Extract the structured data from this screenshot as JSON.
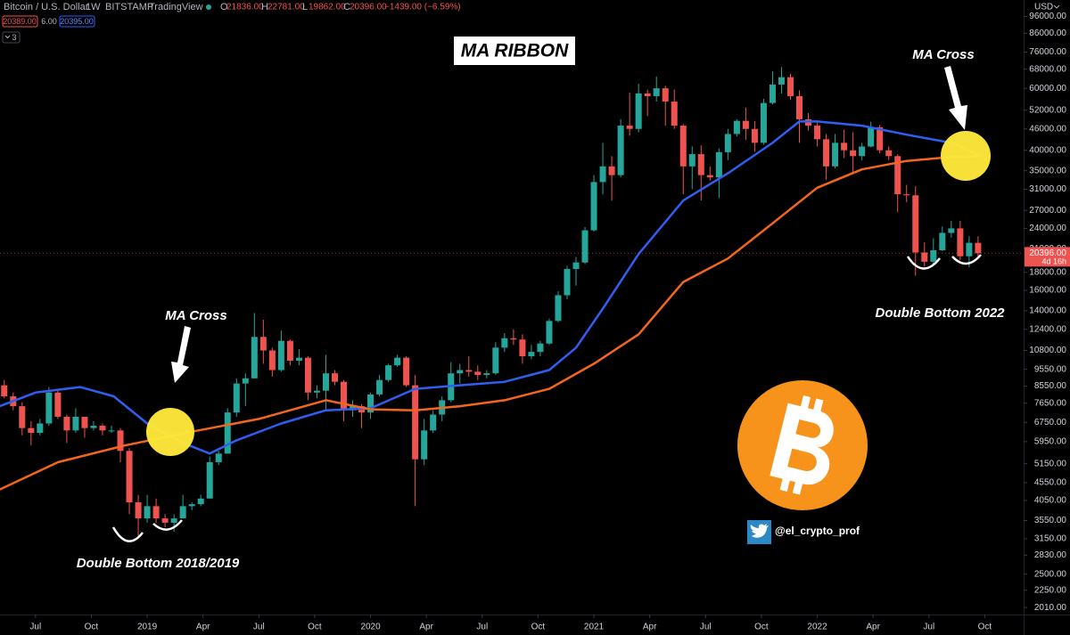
{
  "header": {
    "symbol": "Bitcoin / U.S. Dollar",
    "interval": "1W",
    "exchange": "BITSTAMP",
    "source": "TradingView",
    "ohlc": [
      {
        "key": "O",
        "value": "21836.00"
      },
      {
        "key": "H",
        "value": "22781.00"
      },
      {
        "key": "L",
        "value": "19862.00"
      },
      {
        "key": "C",
        "value": "20396.00"
      }
    ],
    "change": "−1439.00 (−6.59%)",
    "bid": "20389.00",
    "spread": "6.00",
    "ask": "20395.00",
    "indicators": "3"
  },
  "chart_data": {
    "type": "candlestick",
    "title": "MA RIBBON",
    "currency": "USD",
    "log_scale": true,
    "grid": false,
    "up_color": "#26a69a",
    "down_color": "#ef5350",
    "x": [
      2018.36,
      2018.4,
      2018.44,
      2018.48,
      2018.52,
      2018.56,
      2018.6,
      2018.64,
      2018.68,
      2018.72,
      2018.76,
      2018.8,
      2018.84,
      2018.88,
      2018.92,
      2018.96,
      2019.0,
      2019.04,
      2019.08,
      2019.12,
      2019.16,
      2019.2,
      2019.24,
      2019.28,
      2019.32,
      2019.36,
      2019.4,
      2019.44,
      2019.48,
      2019.52,
      2019.56,
      2019.6,
      2019.64,
      2019.68,
      2019.72,
      2019.76,
      2019.8,
      2019.84,
      2019.88,
      2019.92,
      2019.96,
      2020.0,
      2020.04,
      2020.08,
      2020.12,
      2020.16,
      2020.2,
      2020.24,
      2020.28,
      2020.32,
      2020.36,
      2020.4,
      2020.44,
      2020.48,
      2020.52,
      2020.56,
      2020.6,
      2020.64,
      2020.68,
      2020.72,
      2020.76,
      2020.8,
      2020.84,
      2020.88,
      2020.92,
      2020.96,
      2021.0,
      2021.04,
      2021.08,
      2021.12,
      2021.16,
      2021.2,
      2021.24,
      2021.28,
      2021.32,
      2021.36,
      2021.4,
      2021.44,
      2021.48,
      2021.52,
      2021.56,
      2021.6,
      2021.64,
      2021.68,
      2021.72,
      2021.76,
      2021.8,
      2021.84,
      2021.88,
      2021.92,
      2021.96,
      2022.0,
      2022.04,
      2022.08,
      2022.12,
      2022.16,
      2022.2,
      2022.24,
      2022.28,
      2022.32,
      2022.36,
      2022.4,
      2022.44,
      2022.48,
      2022.52,
      2022.56,
      2022.6,
      2022.64,
      2022.68,
      2022.72
    ],
    "open": [
      8600,
      8000,
      7500,
      6500,
      6300,
      6700,
      8200,
      7000,
      6400,
      7000,
      6500,
      6600,
      6400,
      6400,
      5600,
      4000,
      3600,
      3900,
      3600,
      3500,
      3600,
      3900,
      3950,
      4100,
      5200,
      5500,
      7200,
      8700,
      9000,
      11800,
      10800,
      9500,
      11500,
      10100,
      10300,
      8200,
      8300,
      9300,
      8800,
      7300,
      7500,
      7200,
      8100,
      8900,
      9800,
      10300,
      8600,
      5300,
      6400,
      7100,
      7800,
      9300,
      9500,
      9400,
      9200,
      9300,
      11000,
      11700,
      11600,
      10400,
      10700,
      11300,
      13100,
      15500,
      18400,
      19200,
      23700,
      32500,
      36000,
      34000,
      47000,
      46000,
      58000,
      57000,
      60000,
      55000,
      47000,
      36000,
      39000,
      34000,
      33500,
      39500,
      44500,
      48500,
      46000,
      42000,
      54500,
      61500,
      64500,
      57000,
      49000,
      47000,
      43000,
      36000,
      42000,
      40000,
      38500,
      41000,
      46500,
      40000,
      38500,
      30000,
      29800,
      20500,
      19300,
      20800,
      23300,
      24000,
      20000,
      21836
    ],
    "high": [
      8900,
      8200,
      7700,
      6800,
      6900,
      8500,
      8300,
      7100,
      7400,
      7000,
      6800,
      6700,
      6600,
      6500,
      5700,
      4200,
      4200,
      4100,
      3700,
      3700,
      4200,
      4000,
      4200,
      5400,
      5600,
      7400,
      9000,
      9300,
      13800,
      13200,
      11000,
      12300,
      11600,
      10900,
      10400,
      8600,
      10500,
      9500,
      8900,
      7800,
      7600,
      8200,
      9200,
      9900,
      10500,
      10400,
      9200,
      6900,
      7300,
      8000,
      10000,
      9900,
      10400,
      9800,
      9500,
      11400,
      12100,
      12400,
      12000,
      11200,
      11500,
      13300,
      15900,
      18800,
      19900,
      24200,
      34000,
      42000,
      38500,
      49000,
      58300,
      61800,
      59500,
      64800,
      61000,
      59500,
      47500,
      41000,
      41300,
      36000,
      40500,
      46000,
      49000,
      52900,
      48400,
      56000,
      67000,
      69000,
      66000,
      59200,
      51000,
      48500,
      44500,
      44500,
      45800,
      45000,
      42000,
      48200,
      47200,
      41000,
      39000,
      31900,
      31600,
      21900,
      22500,
      24300,
      25200,
      25200,
      22800,
      22781
    ],
    "low": [
      7900,
      7300,
      6200,
      5800,
      6200,
      6600,
      6900,
      5900,
      6300,
      6100,
      6400,
      6200,
      6300,
      5200,
      3700,
      3200,
      3500,
      3500,
      3400,
      3300,
      3600,
      3800,
      3900,
      4100,
      5100,
      5500,
      7000,
      7500,
      9000,
      9900,
      9100,
      9400,
      9800,
      9800,
      7800,
      7900,
      7300,
      8600,
      6800,
      7000,
      6500,
      6900,
      8000,
      8800,
      9700,
      8500,
      3900,
      5100,
      6300,
      6800,
      7700,
      8700,
      9100,
      8900,
      9000,
      9200,
      10700,
      11200,
      9900,
      10200,
      10400,
      11200,
      13000,
      15100,
      16500,
      19000,
      23500,
      30000,
      28800,
      33500,
      44000,
      45000,
      50000,
      55000,
      47000,
      46000,
      30000,
      31000,
      28800,
      32800,
      29300,
      37500,
      43800,
      42800,
      39600,
      41500,
      54000,
      58000,
      55600,
      42000,
      45500,
      41000,
      33000,
      35500,
      38000,
      34300,
      37500,
      40800,
      39200,
      37500,
      26700,
      28500,
      17600,
      18700,
      18900,
      20700,
      22600,
      19500,
      18600,
      19862
    ],
    "close": [
      8000,
      7500,
      6500,
      6300,
      6700,
      8200,
      7000,
      6400,
      7000,
      6500,
      6600,
      6400,
      6400,
      5600,
      4000,
      3600,
      3900,
      3600,
      3500,
      3600,
      3900,
      3950,
      4100,
      5200,
      5500,
      7200,
      8700,
      9000,
      11800,
      10800,
      9500,
      11500,
      10100,
      10300,
      8200,
      8300,
      9300,
      8800,
      7300,
      7500,
      7200,
      8100,
      8900,
      9800,
      10300,
      8600,
      5300,
      6400,
      7100,
      7800,
      9300,
      9500,
      9400,
      9200,
      9300,
      11000,
      11700,
      11600,
      10400,
      10700,
      11300,
      13100,
      15500,
      18400,
      19200,
      23700,
      32500,
      36000,
      34000,
      47000,
      46000,
      58000,
      57000,
      60000,
      55000,
      47000,
      36000,
      39000,
      34000,
      33500,
      39500,
      44500,
      48500,
      46000,
      42000,
      54500,
      61500,
      64500,
      57000,
      49000,
      47000,
      43000,
      36000,
      42000,
      40000,
      38500,
      41000,
      46500,
      40000,
      38500,
      30000,
      29800,
      20500,
      19300,
      20800,
      23300,
      24000,
      20000,
      21836,
      20396
    ],
    "series": [
      {
        "color": "#2f5ff0",
        "x": [
          2018.34,
          2018.5,
          2018.7,
          2018.85,
          2019.0,
          2019.16,
          2019.28,
          2019.4,
          2019.6,
          2019.8,
          2020.0,
          2020.2,
          2020.4,
          2020.6,
          2020.8,
          2020.92,
          2021.04,
          2021.2,
          2021.4,
          2021.6,
          2021.8,
          2021.92,
          2022.0,
          2022.2,
          2022.4,
          2022.6,
          2022.73
        ],
        "values": [
          7500,
          8200,
          8500,
          8000,
          6700,
          5900,
          5500,
          6000,
          6700,
          7300,
          7400,
          8400,
          8600,
          8800,
          9500,
          11000,
          14200,
          20300,
          28800,
          34400,
          42000,
          48300,
          48300,
          47000,
          44300,
          42000,
          38500
        ]
      },
      {
        "color": "#f4661b",
        "x": [
          2018.34,
          2018.6,
          2018.9,
          2019.2,
          2019.5,
          2019.8,
          2020.0,
          2020.2,
          2020.4,
          2020.6,
          2020.8,
          2021.0,
          2021.2,
          2021.4,
          2021.6,
          2021.8,
          2022.0,
          2022.2,
          2022.4,
          2022.6,
          2022.73
        ],
        "values": [
          4350,
          5200,
          5800,
          6350,
          6900,
          7800,
          7350,
          7300,
          7500,
          7800,
          8400,
          9900,
          12000,
          16900,
          19700,
          24800,
          31300,
          35300,
          37300,
          38300,
          38500
        ]
      }
    ],
    "last_price": {
      "value": 20396,
      "label": "20396.00"
    },
    "countdown": "4d 16h",
    "annotations": [
      "MA Cross",
      "MA Cross",
      "Double Bottom 2018/2019",
      "Double Bottom 2022"
    ],
    "handle": "@el_crypto_prof",
    "xlim": [
      2018.341,
      2022.924
    ],
    "xticks": [
      {
        "value": 2018.5,
        "label": "Jul"
      },
      {
        "value": 2018.75,
        "label": "Oct"
      },
      2019,
      {
        "value": 2019.25,
        "label": "Apr"
      },
      {
        "value": 2019.5,
        "label": "Jul"
      },
      {
        "value": 2019.75,
        "label": "Oct"
      },
      2020,
      {
        "value": 2020.25,
        "label": "Apr"
      },
      {
        "value": 2020.5,
        "label": "Jul"
      },
      {
        "value": 2020.75,
        "label": "Oct"
      },
      2021,
      {
        "value": 2021.25,
        "label": "Apr"
      },
      {
        "value": 2021.5,
        "label": "Jul"
      },
      {
        "value": 2021.75,
        "label": "Oct"
      },
      2022,
      {
        "value": 2022.25,
        "label": "Apr"
      },
      {
        "value": 2022.5,
        "label": "Jul"
      },
      {
        "value": 2022.75,
        "label": "Oct"
      }
    ],
    "ylim": [
      1920,
      106900
    ],
    "yticks": [
      {
        "value": 96000,
        "label": "96000.00"
      },
      {
        "value": 86000,
        "label": "86000.00"
      },
      {
        "value": 76000,
        "label": "76000.00"
      },
      {
        "value": 68000,
        "label": "68000.00"
      },
      {
        "value": 60000,
        "label": "60000.00"
      },
      {
        "value": 52000,
        "label": "52000.00"
      },
      {
        "value": 46000,
        "label": "46000.00"
      },
      {
        "value": 40000,
        "label": "40000.00"
      },
      {
        "value": 35000,
        "label": "35000.00"
      },
      {
        "value": 31000,
        "label": "31000.00"
      },
      {
        "value": 27000,
        "label": "27000.00"
      },
      {
        "value": 24000,
        "label": "24000.00"
      },
      {
        "value": 21000,
        "label": "21000.00"
      },
      {
        "value": 18000,
        "label": "18000.00"
      },
      {
        "value": 16000,
        "label": "16000.00"
      },
      {
        "value": 14000,
        "label": "14000.00"
      },
      {
        "value": 12400,
        "label": "12400.00"
      },
      {
        "value": 10800,
        "label": "10800.00"
      },
      {
        "value": 9550,
        "label": "9550.00"
      },
      {
        "value": 8550,
        "label": "8550.00"
      },
      {
        "value": 7650,
        "label": "7650.00"
      },
      {
        "value": 6750,
        "label": "6750.00"
      },
      {
        "value": 5950,
        "label": "5950.00"
      },
      {
        "value": 5150,
        "label": "5150.00"
      },
      {
        "value": 4550,
        "label": "4550.00"
      },
      {
        "value": 4050,
        "label": "4050.00"
      },
      {
        "value": 3550,
        "label": "3550.00"
      },
      {
        "value": 3150,
        "label": "3150.00"
      },
      {
        "value": 2830,
        "label": "2830.00"
      },
      {
        "value": 2500,
        "label": "2500.00"
      },
      {
        "value": 2250,
        "label": "2250.00"
      },
      {
        "value": 2010,
        "label": "2010.00"
      }
    ]
  }
}
